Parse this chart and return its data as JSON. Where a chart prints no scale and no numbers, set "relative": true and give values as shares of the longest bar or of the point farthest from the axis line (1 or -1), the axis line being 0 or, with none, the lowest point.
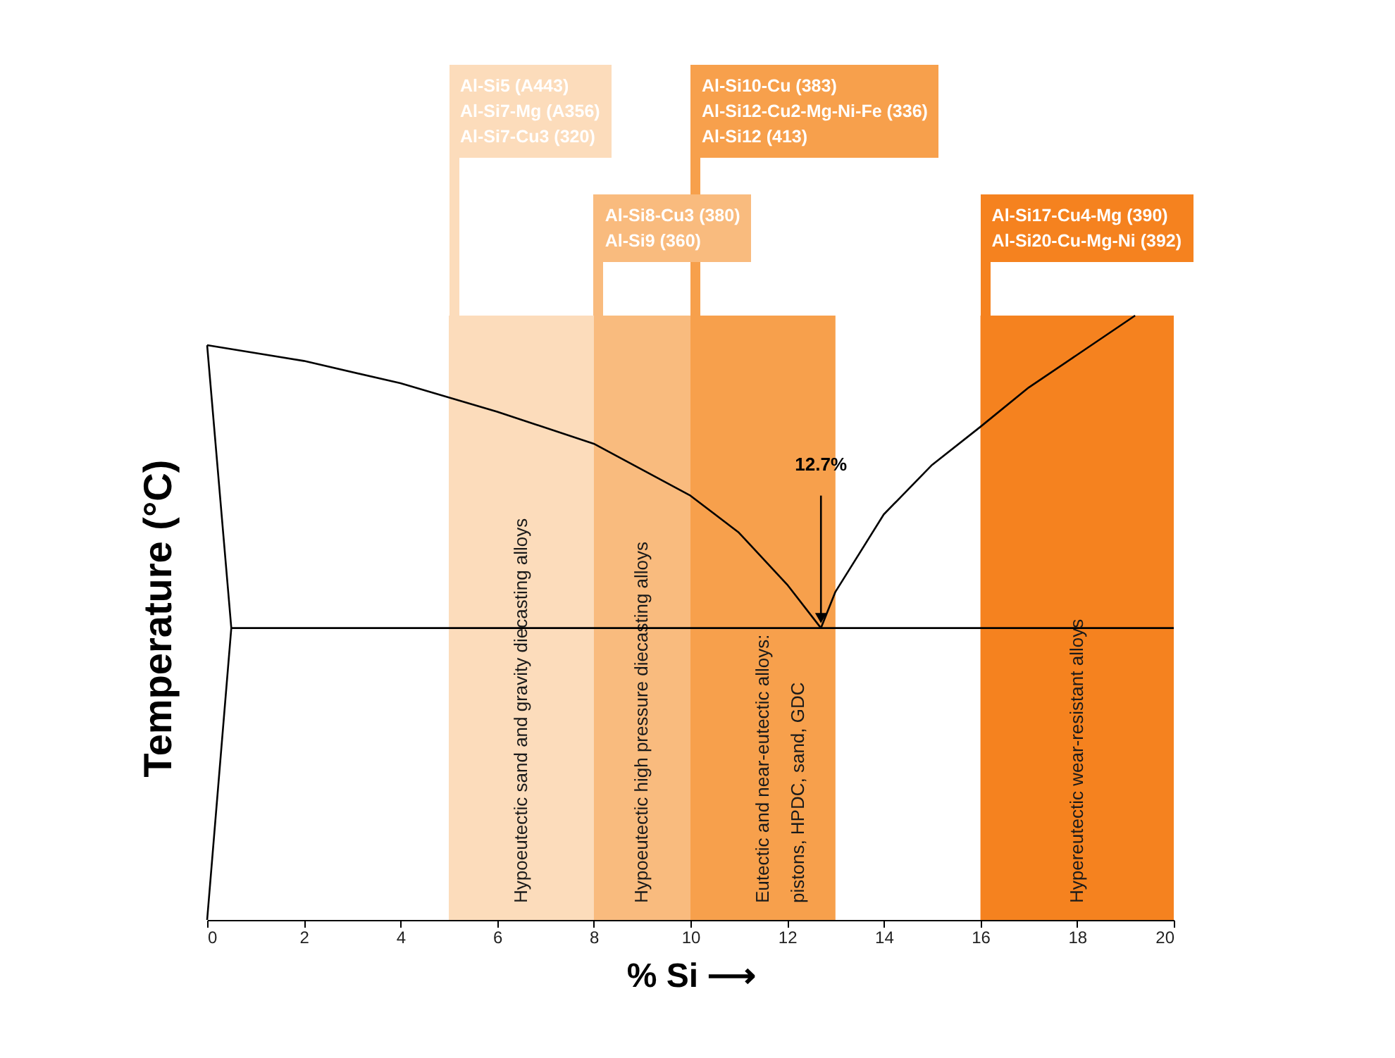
{
  "chart_data": {
    "type": "line",
    "relative": true,
    "xlabel": "% Si ⟶",
    "ylabel": "Temperature (°C)",
    "xlim": [
      0,
      20
    ],
    "xticks": [
      0,
      2,
      4,
      6,
      8,
      10,
      12,
      14,
      16,
      18,
      20
    ],
    "grid": false,
    "marker": "none",
    "line_style": "solid",
    "series": [
      {
        "color": "#000000",
        "x": [
          0,
          2,
          4,
          6,
          8,
          10,
          11,
          12,
          12.7
        ],
        "values": [
          0.951,
          0.925,
          0.888,
          0.841,
          0.788,
          0.702,
          0.641,
          0.555,
          0.483
        ]
      },
      {
        "color": "#000000",
        "x": [
          12.7,
          13,
          14,
          15,
          16,
          17,
          18,
          19.2
        ],
        "values": [
          0.483,
          0.543,
          0.671,
          0.753,
          0.816,
          0.881,
          0.935,
          1.0
        ]
      },
      {
        "color": "#000000",
        "x": [
          0.5,
          20
        ],
        "values": [
          0.483,
          0.483
        ]
      },
      {
        "color": "#000000",
        "x": [
          0,
          0.5,
          0
        ],
        "values": [
          0.951,
          0.483,
          0
        ]
      }
    ],
    "bands": [
      {
        "axis": "x",
        "from": 5,
        "to": 8,
        "label": "Hypoeutectic sand and gravity diecasting alloys",
        "color": "#fcdcbb"
      },
      {
        "axis": "x",
        "from": 8,
        "to": 10,
        "label": "Hypoeutectic high pressure diecasting alloys",
        "color": "#f9bb7e"
      },
      {
        "axis": "x",
        "from": 10,
        "to": 13,
        "label": "Eutectic and near-eutectic alloys:\npistons, HPDC, sand, GDC",
        "color": "#f7a04c"
      },
      {
        "axis": "x",
        "from": 16,
        "to": 20,
        "label": "Hypereutectic wear-resistant alloys",
        "color": "#f5821f"
      }
    ],
    "annotations": [
      "Al-Si5 (A443)\nAl-Si7-Mg (A356)\nAl-Si7-Cu3 (320)",
      "Al-Si8-Cu3 (380)\nAl-Si9 (360)",
      "Al-Si10-Cu (383)\nAl-Si12-Cu2-Mg-Ni-Fe (336)\nAl-Si12 (413)",
      "Al-Si17-Cu4-Mg (390)\nAl-Si20-Cu-Mg-Ni (392)",
      {
        "text": "12.7%",
        "x": 12.7,
        "y": 0.483
      }
    ]
  }
}
